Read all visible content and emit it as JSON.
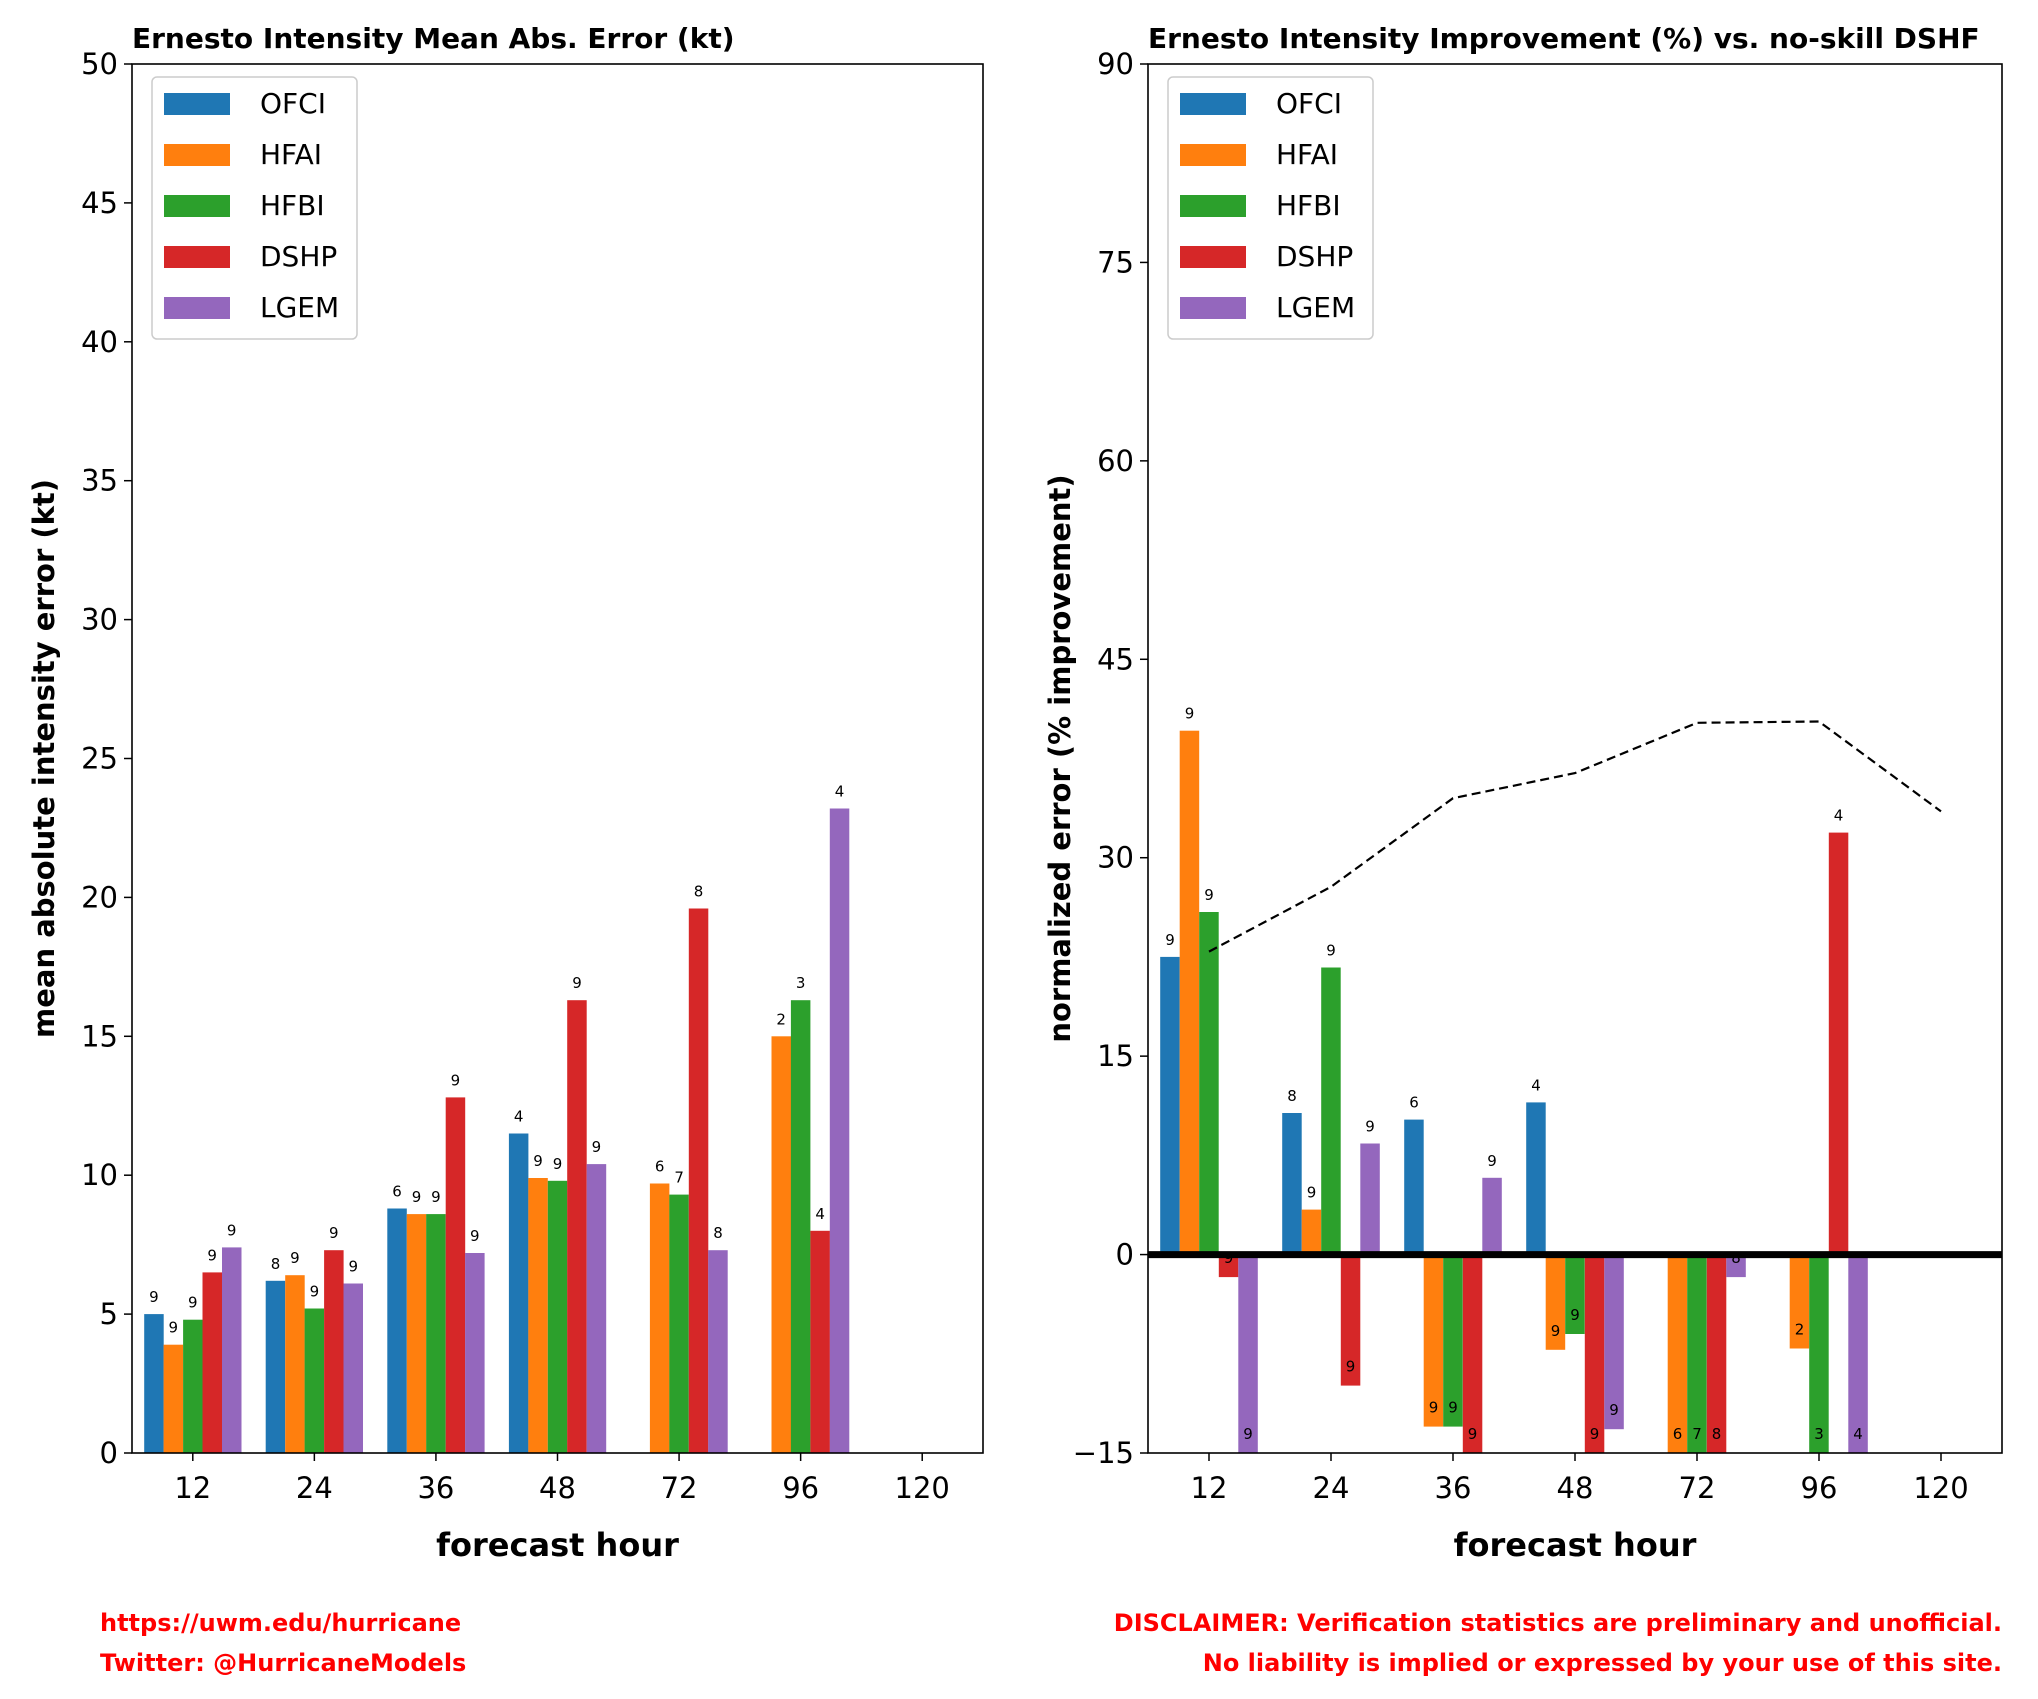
{
  "colors": {
    "OFCI": "#1f77b4",
    "HFAI": "#ff7f0e",
    "HFBI": "#2ca02c",
    "DSHP": "#d62728",
    "LGEM": "#9467bd",
    "footer": "#ff0000"
  },
  "chart_data": [
    {
      "type": "bar",
      "title": "Ernesto Intensity Mean Abs. Error (kt)",
      "xlabel": "forecast hour",
      "ylabel": "mean absolute intensity error (kt)",
      "categories": [
        "12",
        "24",
        "36",
        "48",
        "72",
        "96",
        "120"
      ],
      "ylim": [
        0,
        50
      ],
      "yticks": [
        "0",
        "5",
        "10",
        "15",
        "20",
        "25",
        "30",
        "35",
        "40",
        "45",
        "50"
      ],
      "legend_position": "top-left",
      "series": [
        {
          "name": "OFCI",
          "values": [
            5.0,
            6.2,
            8.8,
            11.5,
            null,
            null,
            null
          ],
          "counts": [
            "9",
            "8",
            "6",
            "4",
            null,
            null,
            null
          ]
        },
        {
          "name": "HFAI",
          "values": [
            3.9,
            6.4,
            8.6,
            9.9,
            9.7,
            15.0,
            null
          ],
          "counts": [
            "9",
            "9",
            "9",
            "9",
            "6",
            "2",
            null
          ]
        },
        {
          "name": "HFBI",
          "values": [
            4.8,
            5.2,
            8.6,
            9.8,
            9.3,
            16.3,
            null
          ],
          "counts": [
            "9",
            "9",
            "9",
            "9",
            "7",
            "3",
            null
          ]
        },
        {
          "name": "DSHP",
          "values": [
            6.5,
            7.3,
            12.8,
            16.3,
            19.6,
            8.0,
            null
          ],
          "counts": [
            "9",
            "9",
            "9",
            "9",
            "8",
            "4",
            null
          ]
        },
        {
          "name": "LGEM",
          "values": [
            7.4,
            6.1,
            7.2,
            10.4,
            7.3,
            23.2,
            null
          ],
          "counts": [
            "9",
            "9",
            "9",
            "9",
            "8",
            "4",
            null
          ]
        }
      ]
    },
    {
      "type": "bar",
      "title": "Ernesto Intensity Improvement (%) vs. no-skill DSHF",
      "xlabel": "forecast hour",
      "ylabel": "normalized error (% improvement)",
      "categories": [
        "12",
        "24",
        "36",
        "48",
        "72",
        "96",
        "120"
      ],
      "ylim": [
        -15,
        90
      ],
      "yticks": [
        "−15",
        "0",
        "15",
        "30",
        "45",
        "60",
        "75",
        "90"
      ],
      "legend_position": "top-left",
      "series": [
        {
          "name": "OFCI",
          "values": [
            22.5,
            10.7,
            10.2,
            11.5,
            null,
            null,
            null
          ],
          "counts": [
            "9",
            "8",
            "6",
            "4",
            null,
            null,
            null
          ]
        },
        {
          "name": "HFAI",
          "values": [
            39.6,
            3.4,
            -13.0,
            -7.2,
            -15.0,
            -7.1,
            null
          ],
          "counts": [
            "9",
            "9",
            "9",
            "9",
            "6",
            "2",
            null
          ]
        },
        {
          "name": "HFBI",
          "values": [
            25.9,
            21.7,
            -13.0,
            -6.0,
            -15.0,
            -15.0,
            null
          ],
          "counts": [
            "9",
            "9",
            "9",
            "9",
            "7",
            "3",
            null
          ]
        },
        {
          "name": "DSHP",
          "values": [
            -1.7,
            -9.9,
            -15.0,
            -15.0,
            -15.0,
            31.9,
            null
          ],
          "counts": [
            "9",
            "9",
            "9",
            "9",
            "8",
            "4",
            null
          ]
        },
        {
          "name": "LGEM",
          "values": [
            -15.0,
            8.4,
            5.8,
            -13.2,
            -1.7,
            -15.0,
            null
          ],
          "counts": [
            "9",
            "9",
            "9",
            "9",
            "8",
            "4",
            null
          ]
        }
      ],
      "reference_line": {
        "style": "dashed",
        "x": [
          "12",
          "24",
          "36",
          "48",
          "72",
          "96",
          "120"
        ],
        "values": [
          22.9,
          27.8,
          34.5,
          36.4,
          40.2,
          40.3,
          33.5
        ]
      }
    }
  ],
  "footer": {
    "url": "https://uwm.edu/hurricane",
    "twitter": "Twitter: @HurricaneModels",
    "disclaimer_line1": "DISCLAIMER: Verification statistics are preliminary and unofficial.",
    "disclaimer_line2": "No liability is implied or expressed by your use of this site."
  }
}
